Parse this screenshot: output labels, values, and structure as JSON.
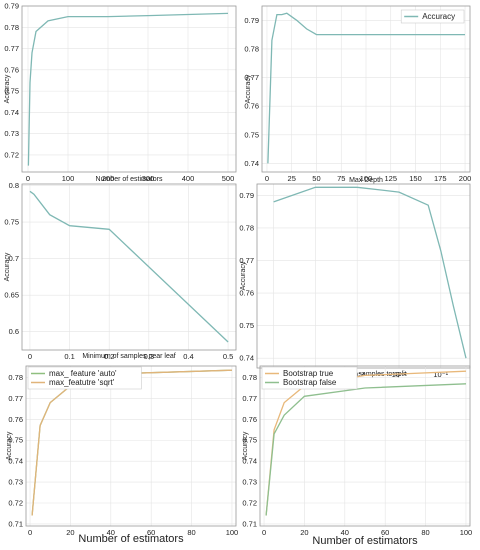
{
  "chart_data": [
    {
      "type": "line",
      "xlabel": "Number of estimators",
      "ylabel": "Accuracy",
      "xlim": [
        -15,
        520
      ],
      "ylim": [
        0.712,
        0.79
      ],
      "xticks": [
        0,
        100,
        200,
        300,
        400,
        500
      ],
      "yticks": [
        0.72,
        0.73,
        0.74,
        0.75,
        0.76,
        0.77,
        0.78,
        0.79
      ],
      "grid": true,
      "series": [
        {
          "color": "#7fb8b4",
          "x": [
            1,
            5,
            10,
            20,
            50,
            100,
            200,
            300,
            400,
            500
          ],
          "y": [
            0.715,
            0.754,
            0.768,
            0.778,
            0.783,
            0.785,
            0.785,
            0.7855,
            0.786,
            0.7865
          ]
        }
      ]
    },
    {
      "type": "line",
      "xlabel": "Max Depth",
      "ylabel": "Accuracy",
      "xlim": [
        -5,
        205
      ],
      "ylim": [
        0.737,
        0.795
      ],
      "xticks": [
        0,
        25,
        50,
        75,
        100,
        125,
        150,
        175,
        200
      ],
      "yticks": [
        0.74,
        0.75,
        0.76,
        0.77,
        0.78,
        0.79
      ],
      "grid": true,
      "legend": "top-right",
      "series": [
        {
          "name": "Accuracy",
          "color": "#7fb8b4",
          "x": [
            1,
            5,
            10,
            15,
            20,
            30,
            40,
            50,
            75,
            100,
            150,
            200
          ],
          "y": [
            0.74,
            0.783,
            0.792,
            0.792,
            0.7925,
            0.79,
            0.787,
            0.785,
            0.785,
            0.785,
            0.785,
            0.785
          ]
        }
      ]
    },
    {
      "type": "line",
      "xlabel": "Minimum of samples pear leaf",
      "ylabel": "Accuracy",
      "xlim": [
        -0.02,
        0.52
      ],
      "ylim": [
        0.575,
        0.802
      ],
      "xticks": [
        0.0,
        0.1,
        0.2,
        0.3,
        0.4,
        0.5
      ],
      "yticks": [
        0.6,
        0.65,
        0.7,
        0.75,
        0.8
      ],
      "grid": true,
      "series": [
        {
          "color": "#7fb8b4",
          "x": [
            0.0,
            0.01,
            0.05,
            0.1,
            0.2,
            0.5
          ],
          "y": [
            0.792,
            0.788,
            0.76,
            0.745,
            0.74,
            0.586
          ]
        }
      ]
    },
    {
      "type": "line",
      "xlabel": "Minimum of samples to split",
      "ylabel": "Accuracy",
      "xscale": "log",
      "xlim": [
        4e-06,
        0.5
      ],
      "ylim": [
        0.737,
        0.7935
      ],
      "xticks": [
        1e-05,
        0.0001,
        0.001,
        0.01,
        0.1
      ],
      "xticklabels": [
        "10⁻⁵",
        "10⁻⁴",
        "10⁻³",
        "10⁻²",
        "10⁻¹"
      ],
      "yticks": [
        0.74,
        0.75,
        0.76,
        0.77,
        0.78,
        0.79
      ],
      "grid": true,
      "series": [
        {
          "color": "#7fb8b4",
          "x": [
            1e-05,
            0.0001,
            0.001,
            0.01,
            0.05,
            0.1,
            0.2,
            0.4
          ],
          "y": [
            0.788,
            0.7925,
            0.7925,
            0.791,
            0.787,
            0.773,
            0.756,
            0.74
          ]
        }
      ]
    },
    {
      "type": "line",
      "xlabel": "Number of estimators",
      "ylabel": "Accuracy",
      "xlim": [
        -2,
        102
      ],
      "ylim": [
        0.709,
        0.7855
      ],
      "xticks": [
        0,
        20,
        40,
        60,
        80,
        100
      ],
      "yticks": [
        0.71,
        0.72,
        0.73,
        0.74,
        0.75,
        0.76,
        0.77,
        0.78
      ],
      "grid": true,
      "legend": "top-left",
      "series": [
        {
          "name": "max_ feature 'auto'",
          "color": "#8fbf7f",
          "x": [
            1,
            5,
            10,
            20,
            50,
            100
          ],
          "y": [
            0.714,
            0.757,
            0.768,
            0.776,
            0.782,
            0.7835
          ]
        },
        {
          "name": "max_featutre 'sqrt'",
          "color": "#e0b47a",
          "x": [
            1,
            5,
            10,
            20,
            50,
            100
          ],
          "y": [
            0.714,
            0.757,
            0.768,
            0.776,
            0.782,
            0.7835
          ]
        }
      ]
    },
    {
      "type": "line",
      "xlabel": "Number of estimators",
      "ylabel": "Accuracy",
      "xlim": [
        -2,
        102
      ],
      "ylim": [
        0.709,
        0.7855
      ],
      "xticks": [
        0,
        20,
        40,
        60,
        80,
        100
      ],
      "yticks": [
        0.71,
        0.72,
        0.73,
        0.74,
        0.75,
        0.76,
        0.77,
        0.78
      ],
      "grid": true,
      "legend": "top-left",
      "series": [
        {
          "name": "Bootstrap true",
          "color": "#e8b87a",
          "x": [
            1,
            5,
            10,
            20,
            50,
            100
          ],
          "y": [
            0.714,
            0.755,
            0.768,
            0.776,
            0.781,
            0.783
          ]
        },
        {
          "name": "Bootstrap false",
          "color": "#8fbf8f",
          "x": [
            1,
            5,
            10,
            20,
            50,
            100
          ],
          "y": [
            0.714,
            0.753,
            0.762,
            0.771,
            0.775,
            0.777
          ]
        }
      ]
    }
  ]
}
